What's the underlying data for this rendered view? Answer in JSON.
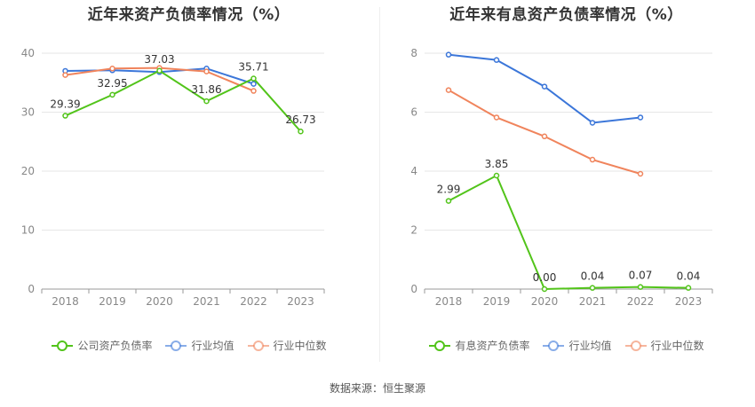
{
  "source": "数据来源：恒生聚源",
  "chart_data": [
    {
      "type": "line",
      "title": "近年来资产负债率情况（%）",
      "categories": [
        "2018",
        "2019",
        "2020",
        "2021",
        "2022",
        "2023"
      ],
      "ylim": [
        0,
        40
      ],
      "yticks": [
        0,
        10,
        20,
        30,
        40
      ],
      "grid": true,
      "legend_position": "bottom",
      "series": [
        {
          "name": "公司资产负债率",
          "color": "#52c41a",
          "values": [
            29.39,
            32.95,
            37.03,
            31.86,
            35.71,
            26.73
          ],
          "labels": [
            "29.39",
            "32.95",
            "37.03",
            "31.86",
            "35.71",
            "26.73"
          ],
          "show_labels": true
        },
        {
          "name": "行业均值",
          "color": "#3b76d9",
          "values": [
            37.0,
            37.1,
            36.8,
            37.4,
            34.8,
            null
          ],
          "show_labels": false
        },
        {
          "name": "行业中位数",
          "color": "#f0845c",
          "values": [
            36.3,
            37.4,
            37.5,
            36.9,
            33.6,
            null
          ],
          "show_labels": false
        }
      ]
    },
    {
      "type": "line",
      "title": "近年来有息资产负债率情况（%）",
      "categories": [
        "2018",
        "2019",
        "2020",
        "2021",
        "2022",
        "2023"
      ],
      "ylim": [
        0,
        8
      ],
      "yticks": [
        0,
        2,
        4,
        6,
        8
      ],
      "grid": true,
      "legend_position": "bottom",
      "series": [
        {
          "name": "有息资产负债率",
          "color": "#52c41a",
          "values": [
            2.99,
            3.85,
            0.0,
            0.04,
            0.07,
            0.04
          ],
          "labels": [
            "2.99",
            "3.85",
            "0.00",
            "0.04",
            "0.07",
            "0.04"
          ],
          "show_labels": true
        },
        {
          "name": "行业均值",
          "color": "#3b76d9",
          "values": [
            7.95,
            7.77,
            6.87,
            5.64,
            5.82,
            null
          ],
          "show_labels": false
        },
        {
          "name": "行业中位数",
          "color": "#f0845c",
          "values": [
            6.75,
            5.82,
            5.18,
            4.39,
            3.91,
            null
          ],
          "show_labels": false
        }
      ]
    }
  ]
}
